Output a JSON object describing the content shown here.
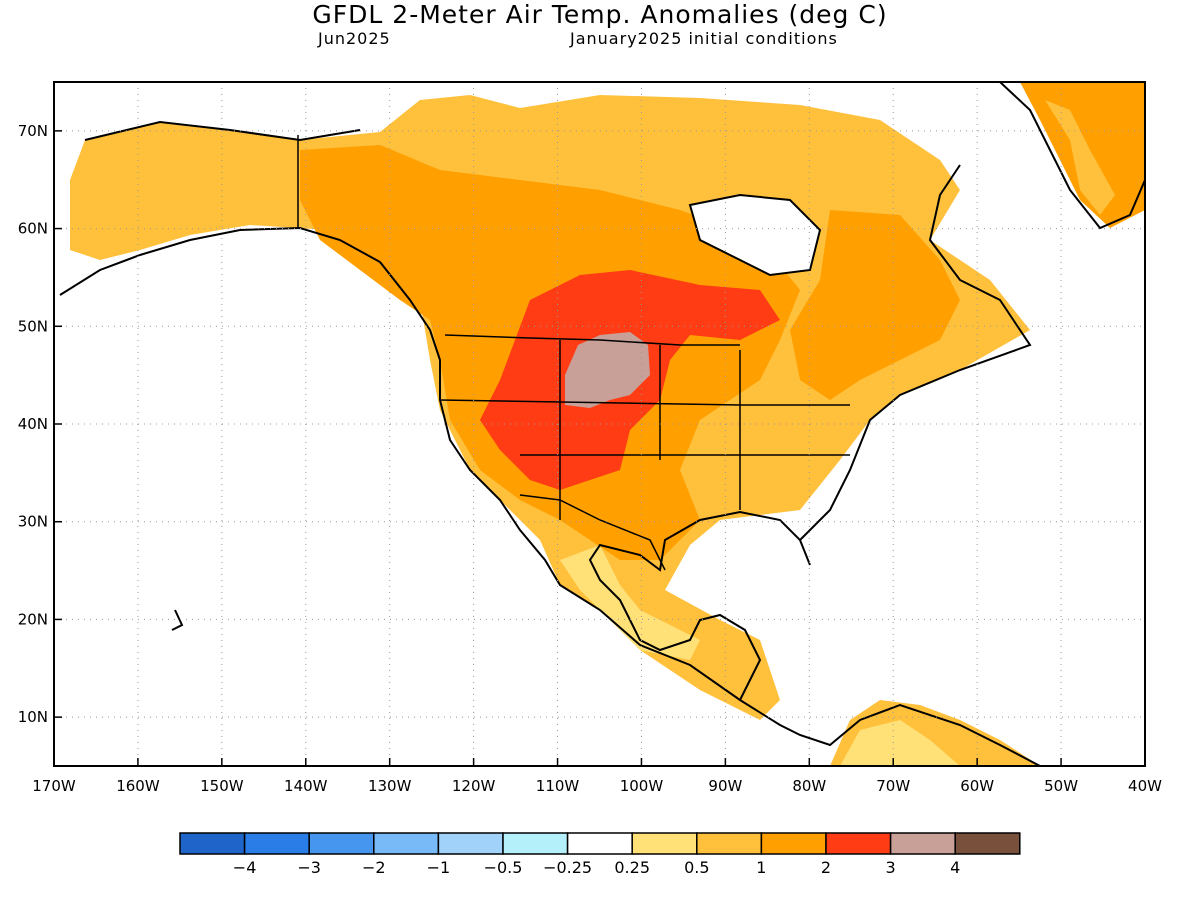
{
  "header": {
    "title": "GFDL 2-Meter Air Temp. Anomalies (deg C)",
    "valid_month": "Jun2025",
    "init": "January2025 initial conditions"
  },
  "map": {
    "lat_ticks": [
      "70N",
      "60N",
      "50N",
      "40N",
      "30N",
      "20N",
      "10N"
    ],
    "lon_ticks": [
      "170W",
      "160W",
      "150W",
      "140W",
      "130W",
      "120W",
      "110W",
      "100W",
      "90W",
      "80W",
      "70W",
      "60W",
      "50W",
      "40W"
    ],
    "lon_range": [
      -170,
      -40
    ],
    "lat_range": [
      5,
      75
    ]
  },
  "colorbar": {
    "colors": [
      "#1f64c8",
      "#2a7ce6",
      "#4696f0",
      "#78b9f8",
      "#a0d2fa",
      "#b4f0fa",
      "#ffffff",
      "#ffe178",
      "#ffc03c",
      "#ffa000",
      "#ff3c14",
      "#c8a098",
      "#78503c"
    ],
    "labels": [
      "−4",
      "−3",
      "−2",
      "−1",
      "−0.5",
      "−0.25",
      "0.25",
      "0.5",
      "1",
      "2",
      "3",
      "4"
    ]
  }
}
